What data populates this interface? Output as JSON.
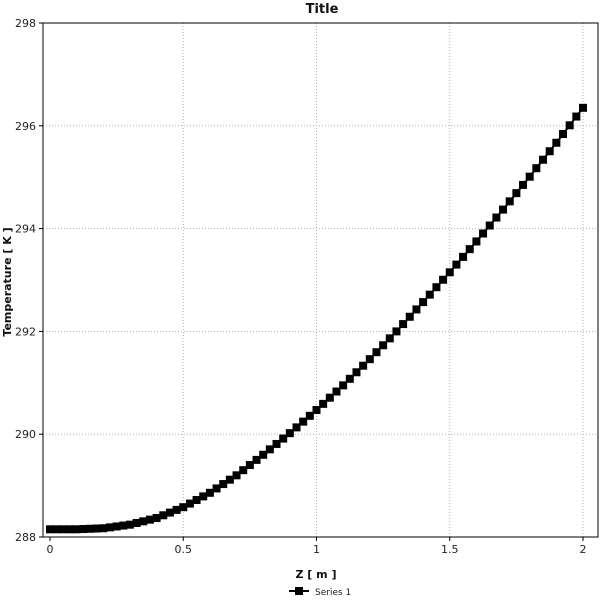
{
  "chart_data": {
    "type": "line",
    "title": "Title",
    "xlabel": "Z [ m ]",
    "ylabel": "Temperature [ K ]",
    "xlim": [
      0,
      2
    ],
    "ylim": [
      288,
      298
    ],
    "xticks": [
      0,
      0.5,
      1,
      1.5,
      2
    ],
    "xtick_labels": [
      "0",
      "0.5",
      "1",
      "1.5",
      "2"
    ],
    "yticks": [
      288,
      290,
      292,
      294,
      296,
      298
    ],
    "ytick_labels": [
      "288",
      "290",
      "292",
      "294",
      "296",
      "298"
    ],
    "grid": true,
    "legend": "bottom-center",
    "marker": "square",
    "color": "#000000",
    "series": [
      {
        "name": "Series 1",
        "x": [
          0,
          0.1,
          0.2,
          0.3,
          0.4,
          0.5,
          0.6,
          0.7,
          0.8,
          0.9,
          1.0,
          1.1,
          1.2,
          1.3,
          1.4,
          1.5,
          1.6,
          1.7,
          1.8,
          1.9,
          2.0
        ],
        "y": [
          288.15,
          288.15,
          288.17,
          288.24,
          288.37,
          288.58,
          288.86,
          289.2,
          289.6,
          290.02,
          290.47,
          290.95,
          291.46,
          292.0,
          292.57,
          293.15,
          293.75,
          294.37,
          295.01,
          295.67,
          296.35
        ]
      }
    ]
  }
}
